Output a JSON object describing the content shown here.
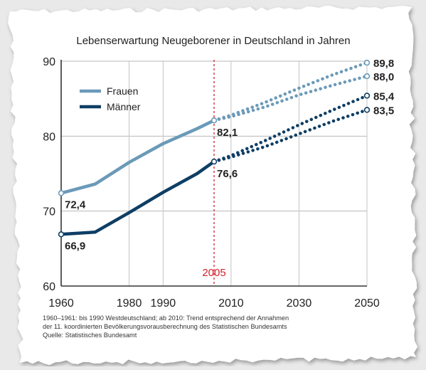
{
  "chart_data": {
    "type": "line",
    "title": "Lebenserwartung Neugeborener in Deutschland in Jahren",
    "xlim": [
      1960,
      2050
    ],
    "ylim": [
      60,
      90
    ],
    "x_ticks": [
      "1960",
      "1980",
      "1990",
      "2010",
      "2030",
      "2050"
    ],
    "y_ticks": [
      "60",
      "70",
      "80",
      "90"
    ],
    "grid": true,
    "legend_position": "top-left",
    "marker": {
      "x": 2005,
      "label": "2005"
    },
    "series": [
      {
        "name": "Frauen",
        "color": "#6b9ab8",
        "x": [
          1960,
          1970,
          1980,
          1990,
          2000,
          2005
        ],
        "y": [
          72.4,
          73.6,
          76.5,
          79.0,
          81.0,
          82.1
        ],
        "forecast": [
          {
            "x": [
              2005,
              2010,
              2020,
              2030,
              2040,
              2050
            ],
            "y": [
              82.1,
              82.8,
              84.5,
              86.4,
              88.2,
              89.8
            ],
            "end_label": "89,8"
          },
          {
            "x": [
              2005,
              2010,
              2020,
              2030,
              2040,
              2050
            ],
            "y": [
              82.1,
              82.6,
              83.9,
              85.5,
              86.8,
              88.0
            ],
            "end_label": "88,0"
          }
        ],
        "start_label": "72,4",
        "marker_label": "82,1"
      },
      {
        "name": "Männer",
        "color": "#0e3e64",
        "x": [
          1960,
          1970,
          1980,
          1990,
          2000,
          2005
        ],
        "y": [
          66.9,
          67.2,
          69.8,
          72.5,
          75.0,
          76.6
        ],
        "forecast": [
          {
            "x": [
              2005,
              2010,
              2020,
              2030,
              2040,
              2050
            ],
            "y": [
              76.6,
              77.4,
              79.4,
              81.5,
              83.5,
              85.4
            ],
            "end_label": "85,4"
          },
          {
            "x": [
              2005,
              2010,
              2020,
              2030,
              2040,
              2050
            ],
            "y": [
              76.6,
              77.2,
              78.6,
              80.3,
              82.0,
              83.5
            ],
            "end_label": "83,5"
          }
        ],
        "start_label": "66,9",
        "marker_label": "76,6"
      }
    ],
    "notes": [
      "1960–1961: bis 1990 Westdeutschland; ab 2010: Trend entsprechend der Annahmen",
      "der 11. koordinierten Bevölkerungsvorausberechnung des Statistischen Bundesamts",
      "Quelle: Statistisches Bundesamt"
    ]
  }
}
